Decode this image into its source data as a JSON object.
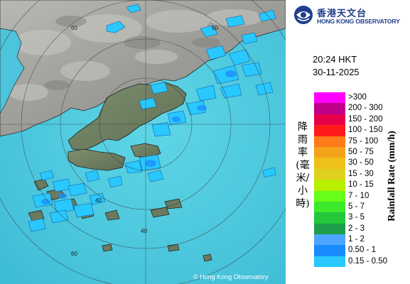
{
  "header": {
    "logo_cn": "香港天文台",
    "logo_en": "HONG KONG OBSERVATORY"
  },
  "timestamp": {
    "time": "20:24 HKT",
    "date": "30-11-2025"
  },
  "map": {
    "ring_labels": [
      "60",
      "60",
      "60",
      "40",
      "40"
    ],
    "copyright": "© Hong Kong Observatory"
  },
  "legend": {
    "title_cn": "降雨率(毫米/小時)",
    "title_en": "Rainfall Rate (mm/h)",
    "items": [
      {
        "label": ">300",
        "color": "#ff00ff"
      },
      {
        "label": "200 - 300",
        "color": "#c0008a"
      },
      {
        "label": "150 - 200",
        "color": "#e8004b"
      },
      {
        "label": "100 - 150",
        "color": "#ff1a1a"
      },
      {
        "label": "75 - 100",
        "color": "#ff7a1a"
      },
      {
        "label": "50 - 75",
        "color": "#f5a31a"
      },
      {
        "label": "30 - 50",
        "color": "#f0c01a"
      },
      {
        "label": "15 - 30",
        "color": "#e0d020"
      },
      {
        "label": "10 - 15",
        "color": "#b8f000"
      },
      {
        "label": "7 - 10",
        "color": "#66ff1a"
      },
      {
        "label": "5 - 7",
        "color": "#3ee82a"
      },
      {
        "label": "3 - 5",
        "color": "#22c83a"
      },
      {
        "label": "2 - 3",
        "color": "#1e9e4a"
      },
      {
        "label": "1 - 2",
        "color": "#4da6ff"
      },
      {
        "label": "0.50 - 1",
        "color": "#1a8cff"
      },
      {
        "label": "0.15 - 0.50",
        "color": "#29c8ff"
      }
    ]
  }
}
